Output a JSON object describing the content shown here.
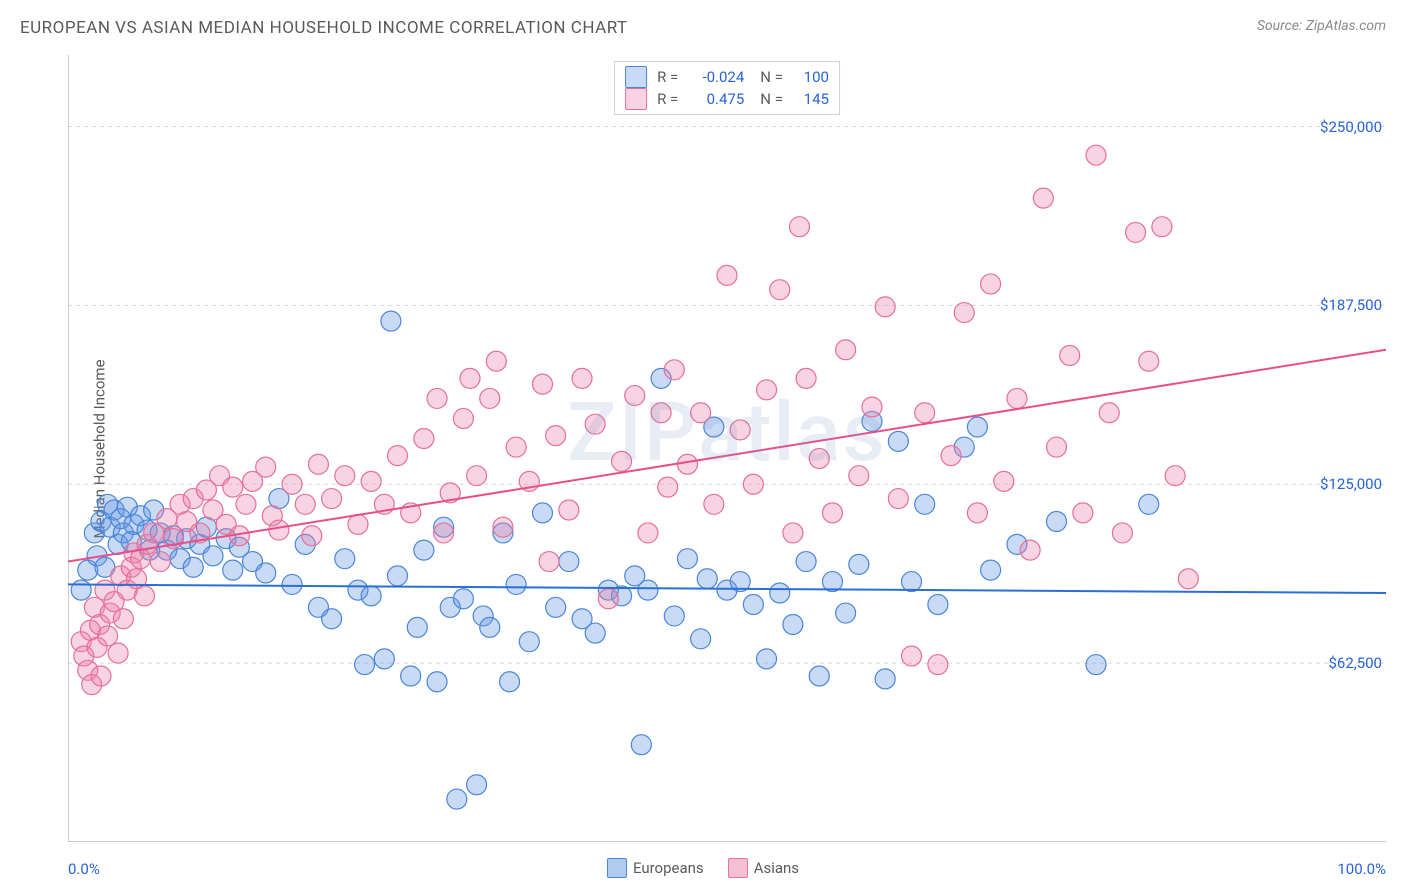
{
  "header": {
    "title": "EUROPEAN VS ASIAN MEDIAN HOUSEHOLD INCOME CORRELATION CHART",
    "source": "Source: ZipAtlas.com"
  },
  "chart": {
    "type": "scatter",
    "ylabel": "Median Household Income",
    "watermark": "ZIPatlas",
    "xlim": [
      0,
      100
    ],
    "ylim": [
      0,
      275000
    ],
    "x_left_label": "0.0%",
    "x_right_label": "100.0%",
    "y_ticks": [
      {
        "v": 62500,
        "label": "$62,500"
      },
      {
        "v": 125000,
        "label": "$125,000"
      },
      {
        "v": 187500,
        "label": "$187,500"
      },
      {
        "v": 250000,
        "label": "$250,000"
      }
    ],
    "x_tick_positions": [
      0,
      10,
      20,
      30,
      40,
      50,
      60,
      70,
      80,
      90,
      100
    ],
    "grid_color": "#d8d8d8",
    "axis_color": "#9a9a9a",
    "background": "#ffffff",
    "marker_radius": 10,
    "marker_stroke_width": 1.2,
    "trend_line_width": 2,
    "series": [
      {
        "name": "Europeans",
        "fill": "rgba(99,150,226,0.35)",
        "stroke": "#4a86d8",
        "trend_color": "#2a6fd6",
        "trend": {
          "y_at_x0": 90000,
          "y_at_x100": 87000
        },
        "R_label": "R =",
        "R": "-0.024",
        "N_label": "N =",
        "N": "100",
        "points": [
          [
            1,
            88000
          ],
          [
            1.5,
            95000
          ],
          [
            2,
            108000
          ],
          [
            2.2,
            100000
          ],
          [
            2.5,
            112000
          ],
          [
            2.8,
            96000
          ],
          [
            3,
            118000
          ],
          [
            3.2,
            110000
          ],
          [
            3.5,
            116000
          ],
          [
            3.8,
            104000
          ],
          [
            4,
            113000
          ],
          [
            4.2,
            108000
          ],
          [
            4.5,
            117000
          ],
          [
            4.8,
            105000
          ],
          [
            5,
            111000
          ],
          [
            5.5,
            114000
          ],
          [
            6,
            109000
          ],
          [
            6.2,
            102000
          ],
          [
            6.5,
            116000
          ],
          [
            7,
            108000
          ],
          [
            7.5,
            102000
          ],
          [
            8,
            107000
          ],
          [
            8.5,
            99000
          ],
          [
            9,
            106000
          ],
          [
            9.5,
            96000
          ],
          [
            10,
            104000
          ],
          [
            10.5,
            110000
          ],
          [
            11,
            100000
          ],
          [
            12,
            106000
          ],
          [
            12.5,
            95000
          ],
          [
            13,
            103000
          ],
          [
            14,
            98000
          ],
          [
            15,
            94000
          ],
          [
            16,
            120000
          ],
          [
            17,
            90000
          ],
          [
            18,
            104000
          ],
          [
            19,
            82000
          ],
          [
            20,
            78000
          ],
          [
            21,
            99000
          ],
          [
            22,
            88000
          ],
          [
            22.5,
            62000
          ],
          [
            23,
            86000
          ],
          [
            24,
            64000
          ],
          [
            24.5,
            182000
          ],
          [
            25,
            93000
          ],
          [
            26,
            58000
          ],
          [
            26.5,
            75000
          ],
          [
            27,
            102000
          ],
          [
            28,
            56000
          ],
          [
            28.5,
            110000
          ],
          [
            29,
            82000
          ],
          [
            29.5,
            15000
          ],
          [
            30,
            85000
          ],
          [
            31,
            20000
          ],
          [
            31.5,
            79000
          ],
          [
            32,
            75000
          ],
          [
            33,
            108000
          ],
          [
            33.5,
            56000
          ],
          [
            34,
            90000
          ],
          [
            35,
            70000
          ],
          [
            36,
            115000
          ],
          [
            37,
            82000
          ],
          [
            38,
            98000
          ],
          [
            39,
            78000
          ],
          [
            40,
            73000
          ],
          [
            41,
            88000
          ],
          [
            42,
            86000
          ],
          [
            43,
            93000
          ],
          [
            43.5,
            34000
          ],
          [
            44,
            88000
          ],
          [
            45,
            162000
          ],
          [
            46,
            79000
          ],
          [
            47,
            99000
          ],
          [
            48,
            71000
          ],
          [
            48.5,
            92000
          ],
          [
            49,
            145000
          ],
          [
            50,
            88000
          ],
          [
            51,
            91000
          ],
          [
            52,
            83000
          ],
          [
            53,
            64000
          ],
          [
            54,
            87000
          ],
          [
            55,
            76000
          ],
          [
            56,
            98000
          ],
          [
            57,
            58000
          ],
          [
            58,
            91000
          ],
          [
            59,
            80000
          ],
          [
            60,
            97000
          ],
          [
            61,
            147000
          ],
          [
            62,
            57000
          ],
          [
            63,
            140000
          ],
          [
            64,
            91000
          ],
          [
            65,
            118000
          ],
          [
            66,
            83000
          ],
          [
            68,
            138000
          ],
          [
            69,
            145000
          ],
          [
            70,
            95000
          ],
          [
            72,
            104000
          ],
          [
            75,
            112000
          ],
          [
            78,
            62000
          ],
          [
            82,
            118000
          ]
        ]
      },
      {
        "name": "Asians",
        "fill": "rgba(236,130,168,0.35)",
        "stroke": "#e66f9b",
        "trend_color": "#e84f89",
        "trend": {
          "y_at_x0": 98000,
          "y_at_x100": 172000
        },
        "R_label": "R =",
        "R": "0.475",
        "N_label": "N =",
        "N": "145",
        "points": [
          [
            1,
            70000
          ],
          [
            1.2,
            65000
          ],
          [
            1.5,
            60000
          ],
          [
            1.7,
            74000
          ],
          [
            1.8,
            55000
          ],
          [
            2,
            82000
          ],
          [
            2.2,
            68000
          ],
          [
            2.4,
            76000
          ],
          [
            2.5,
            58000
          ],
          [
            2.8,
            88000
          ],
          [
            3,
            72000
          ],
          [
            3.2,
            80000
          ],
          [
            3.5,
            84000
          ],
          [
            3.8,
            66000
          ],
          [
            4,
            93000
          ],
          [
            4.2,
            78000
          ],
          [
            4.5,
            88000
          ],
          [
            4.8,
            96000
          ],
          [
            5,
            101000
          ],
          [
            5.2,
            92000
          ],
          [
            5.5,
            99000
          ],
          [
            5.8,
            86000
          ],
          [
            6,
            104000
          ],
          [
            6.5,
            108000
          ],
          [
            7,
            98000
          ],
          [
            7.5,
            113000
          ],
          [
            8,
            106000
          ],
          [
            8.5,
            118000
          ],
          [
            9,
            112000
          ],
          [
            9.5,
            120000
          ],
          [
            10,
            108000
          ],
          [
            10.5,
            123000
          ],
          [
            11,
            116000
          ],
          [
            11.5,
            128000
          ],
          [
            12,
            111000
          ],
          [
            12.5,
            124000
          ],
          [
            13,
            107000
          ],
          [
            13.5,
            118000
          ],
          [
            14,
            126000
          ],
          [
            15,
            131000
          ],
          [
            15.5,
            114000
          ],
          [
            16,
            109000
          ],
          [
            17,
            125000
          ],
          [
            18,
            118000
          ],
          [
            18.5,
            107000
          ],
          [
            19,
            132000
          ],
          [
            20,
            120000
          ],
          [
            21,
            128000
          ],
          [
            22,
            111000
          ],
          [
            23,
            126000
          ],
          [
            24,
            118000
          ],
          [
            25,
            135000
          ],
          [
            26,
            115000
          ],
          [
            27,
            141000
          ],
          [
            28,
            155000
          ],
          [
            28.5,
            108000
          ],
          [
            29,
            122000
          ],
          [
            30,
            148000
          ],
          [
            30.5,
            162000
          ],
          [
            31,
            128000
          ],
          [
            32,
            155000
          ],
          [
            32.5,
            168000
          ],
          [
            33,
            110000
          ],
          [
            34,
            138000
          ],
          [
            35,
            126000
          ],
          [
            36,
            160000
          ],
          [
            36.5,
            98000
          ],
          [
            37,
            142000
          ],
          [
            38,
            116000
          ],
          [
            39,
            162000
          ],
          [
            40,
            146000
          ],
          [
            41,
            85000
          ],
          [
            42,
            133000
          ],
          [
            43,
            156000
          ],
          [
            44,
            108000
          ],
          [
            45,
            150000
          ],
          [
            45.5,
            124000
          ],
          [
            46,
            165000
          ],
          [
            47,
            132000
          ],
          [
            48,
            150000
          ],
          [
            49,
            118000
          ],
          [
            50,
            198000
          ],
          [
            51,
            144000
          ],
          [
            52,
            125000
          ],
          [
            53,
            158000
          ],
          [
            54,
            193000
          ],
          [
            55,
            108000
          ],
          [
            55.5,
            215000
          ],
          [
            56,
            162000
          ],
          [
            57,
            134000
          ],
          [
            58,
            115000
          ],
          [
            59,
            172000
          ],
          [
            60,
            128000
          ],
          [
            61,
            152000
          ],
          [
            62,
            187000
          ],
          [
            63,
            120000
          ],
          [
            64,
            65000
          ],
          [
            65,
            150000
          ],
          [
            66,
            62000
          ],
          [
            67,
            135000
          ],
          [
            68,
            185000
          ],
          [
            69,
            115000
          ],
          [
            70,
            195000
          ],
          [
            71,
            126000
          ],
          [
            72,
            155000
          ],
          [
            73,
            102000
          ],
          [
            74,
            225000
          ],
          [
            75,
            138000
          ],
          [
            76,
            170000
          ],
          [
            77,
            115000
          ],
          [
            78,
            240000
          ],
          [
            79,
            150000
          ],
          [
            80,
            108000
          ],
          [
            81,
            213000
          ],
          [
            82,
            168000
          ],
          [
            83,
            215000
          ],
          [
            84,
            128000
          ],
          [
            85,
            92000
          ]
        ]
      }
    ],
    "bottom_legend": [
      {
        "swatch_fill": "rgba(99,150,226,0.5)",
        "swatch_stroke": "#4a86d8",
        "label": "Europeans"
      },
      {
        "swatch_fill": "rgba(236,130,168,0.5)",
        "swatch_stroke": "#e66f9b",
        "label": "Asians"
      }
    ]
  }
}
